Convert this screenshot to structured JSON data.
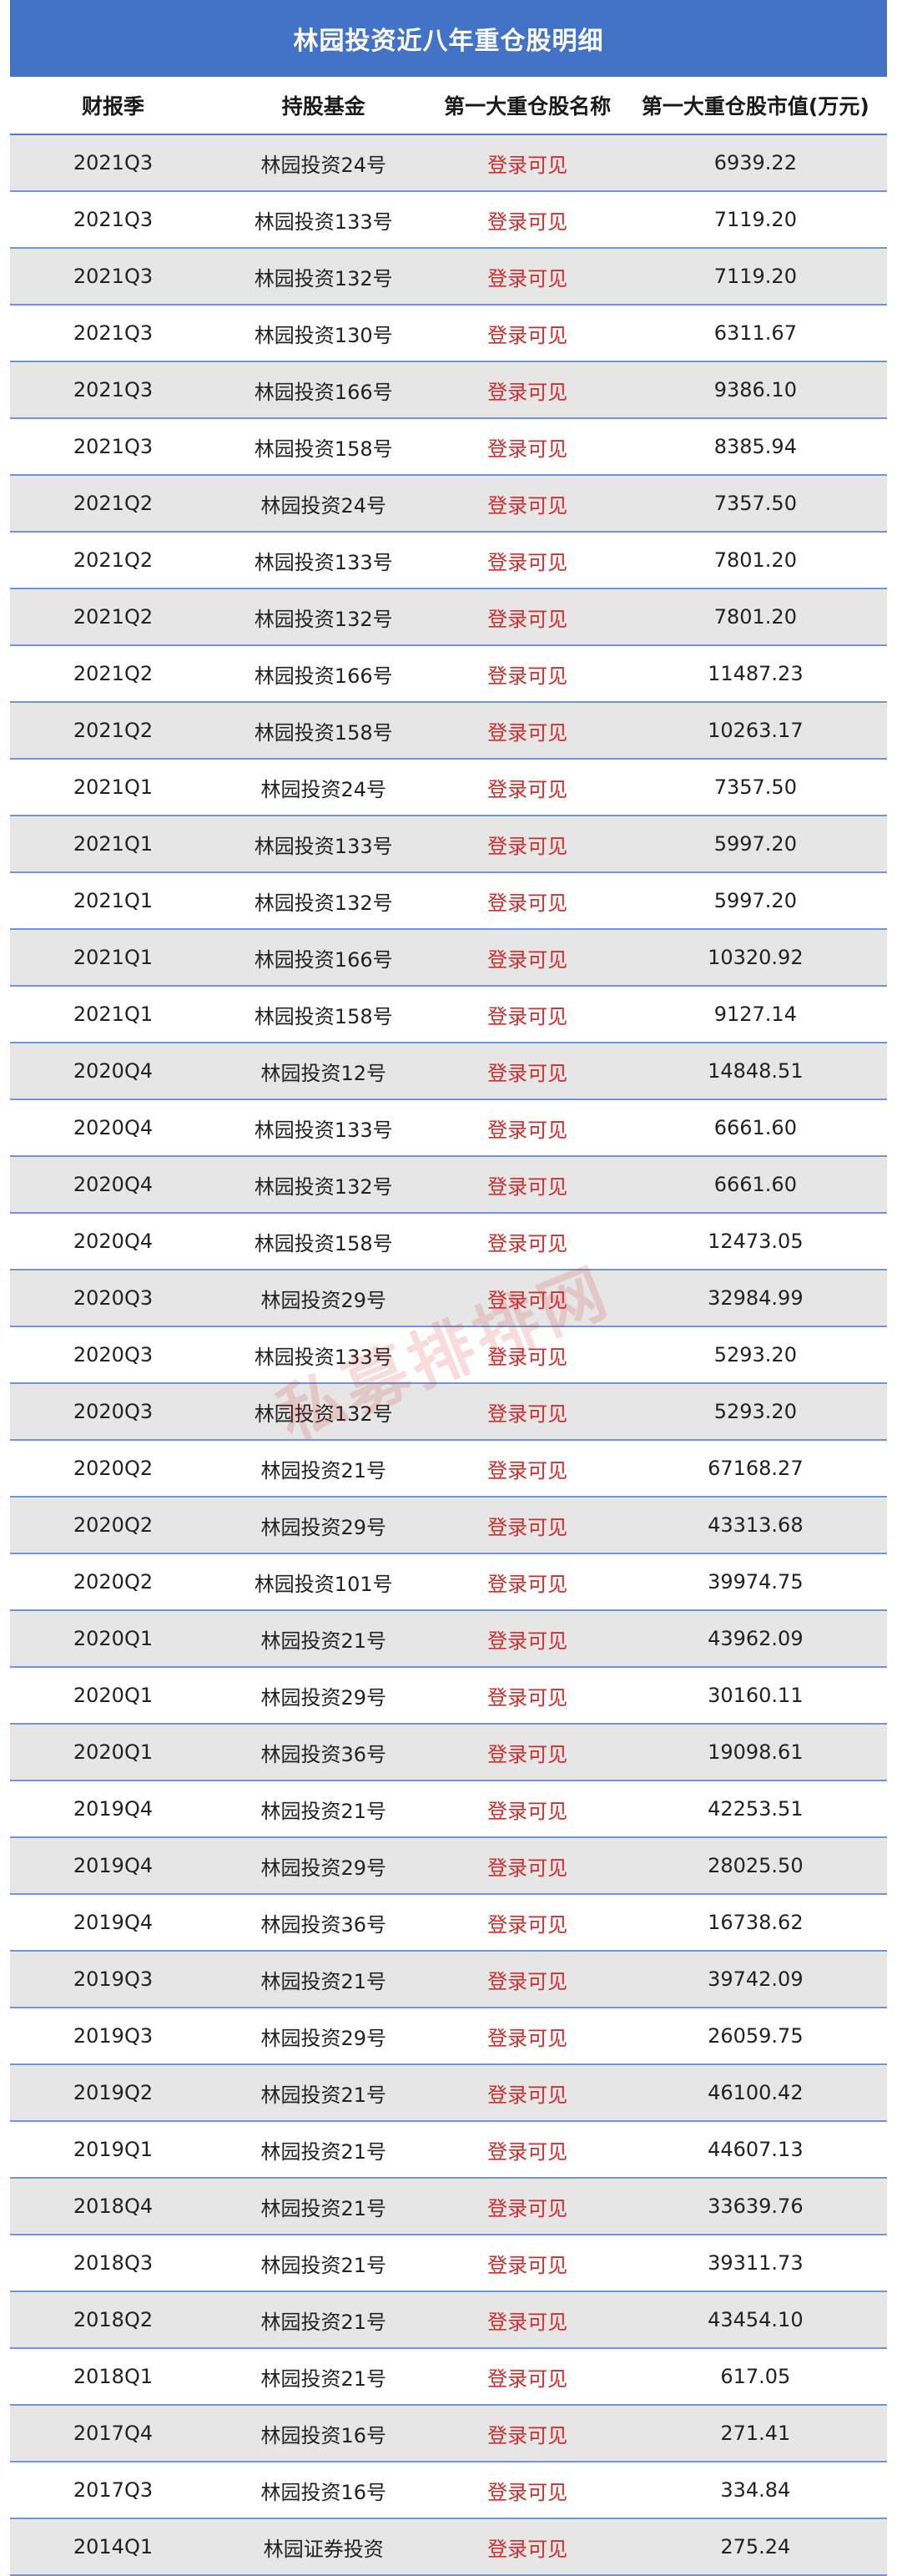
{
  "title": "林园投资近八年重仓股明细",
  "headers": [
    "财报季",
    "持股基金",
    "第一大重仓股名称",
    "第一大重仓股市值(万元)"
  ],
  "watermark": "私募排排网",
  "colors": {
    "header_bg": "#4273c6",
    "row_alt": "#e6e6e6",
    "login_red": "#d42b2b",
    "border_blue": "#6f94d8"
  },
  "rows": [
    {
      "season": "2021Q3",
      "fund": "林园投资24号",
      "stock": "登录可见",
      "value": "6939.22"
    },
    {
      "season": "2021Q3",
      "fund": "林园投资133号",
      "stock": "登录可见",
      "value": "7119.20"
    },
    {
      "season": "2021Q3",
      "fund": "林园投资132号",
      "stock": "登录可见",
      "value": "7119.20"
    },
    {
      "season": "2021Q3",
      "fund": "林园投资130号",
      "stock": "登录可见",
      "value": "6311.67"
    },
    {
      "season": "2021Q3",
      "fund": "林园投资166号",
      "stock": "登录可见",
      "value": "9386.10"
    },
    {
      "season": "2021Q3",
      "fund": "林园投资158号",
      "stock": "登录可见",
      "value": "8385.94"
    },
    {
      "season": "2021Q2",
      "fund": "林园投资24号",
      "stock": "登录可见",
      "value": "7357.50"
    },
    {
      "season": "2021Q2",
      "fund": "林园投资133号",
      "stock": "登录可见",
      "value": "7801.20"
    },
    {
      "season": "2021Q2",
      "fund": "林园投资132号",
      "stock": "登录可见",
      "value": "7801.20"
    },
    {
      "season": "2021Q2",
      "fund": "林园投资166号",
      "stock": "登录可见",
      "value": "11487.23"
    },
    {
      "season": "2021Q2",
      "fund": "林园投资158号",
      "stock": "登录可见",
      "value": "10263.17"
    },
    {
      "season": "2021Q1",
      "fund": "林园投资24号",
      "stock": "登录可见",
      "value": "7357.50"
    },
    {
      "season": "2021Q1",
      "fund": "林园投资133号",
      "stock": "登录可见",
      "value": "5997.20"
    },
    {
      "season": "2021Q1",
      "fund": "林园投资132号",
      "stock": "登录可见",
      "value": "5997.20"
    },
    {
      "season": "2021Q1",
      "fund": "林园投资166号",
      "stock": "登录可见",
      "value": "10320.92"
    },
    {
      "season": "2021Q1",
      "fund": "林园投资158号",
      "stock": "登录可见",
      "value": "9127.14"
    },
    {
      "season": "2020Q4",
      "fund": "林园投资12号",
      "stock": "登录可见",
      "value": "14848.51"
    },
    {
      "season": "2020Q4",
      "fund": "林园投资133号",
      "stock": "登录可见",
      "value": "6661.60"
    },
    {
      "season": "2020Q4",
      "fund": "林园投资132号",
      "stock": "登录可见",
      "value": "6661.60"
    },
    {
      "season": "2020Q4",
      "fund": "林园投资158号",
      "stock": "登录可见",
      "value": "12473.05"
    },
    {
      "season": "2020Q3",
      "fund": "林园投资29号",
      "stock": "登录可见",
      "value": "32984.99"
    },
    {
      "season": "2020Q3",
      "fund": "林园投资133号",
      "stock": "登录可见",
      "value": "5293.20"
    },
    {
      "season": "2020Q3",
      "fund": "林园投资132号",
      "stock": "登录可见",
      "value": "5293.20"
    },
    {
      "season": "2020Q2",
      "fund": "林园投资21号",
      "stock": "登录可见",
      "value": "67168.27"
    },
    {
      "season": "2020Q2",
      "fund": "林园投资29号",
      "stock": "登录可见",
      "value": "43313.68"
    },
    {
      "season": "2020Q2",
      "fund": "林园投资101号",
      "stock": "登录可见",
      "value": "39974.75"
    },
    {
      "season": "2020Q1",
      "fund": "林园投资21号",
      "stock": "登录可见",
      "value": "43962.09"
    },
    {
      "season": "2020Q1",
      "fund": "林园投资29号",
      "stock": "登录可见",
      "value": "30160.11"
    },
    {
      "season": "2020Q1",
      "fund": "林园投资36号",
      "stock": "登录可见",
      "value": "19098.61"
    },
    {
      "season": "2019Q4",
      "fund": "林园投资21号",
      "stock": "登录可见",
      "value": "42253.51"
    },
    {
      "season": "2019Q4",
      "fund": "林园投资29号",
      "stock": "登录可见",
      "value": "28025.50"
    },
    {
      "season": "2019Q4",
      "fund": "林园投资36号",
      "stock": "登录可见",
      "value": "16738.62"
    },
    {
      "season": "2019Q3",
      "fund": "林园投资21号",
      "stock": "登录可见",
      "value": "39742.09"
    },
    {
      "season": "2019Q3",
      "fund": "林园投资29号",
      "stock": "登录可见",
      "value": "26059.75"
    },
    {
      "season": "2019Q2",
      "fund": "林园投资21号",
      "stock": "登录可见",
      "value": "46100.42"
    },
    {
      "season": "2019Q1",
      "fund": "林园投资21号",
      "stock": "登录可见",
      "value": "44607.13"
    },
    {
      "season": "2018Q4",
      "fund": "林园投资21号",
      "stock": "登录可见",
      "value": "33639.76"
    },
    {
      "season": "2018Q3",
      "fund": "林园投资21号",
      "stock": "登录可见",
      "value": "39311.73"
    },
    {
      "season": "2018Q2",
      "fund": "林园投资21号",
      "stock": "登录可见",
      "value": "43454.10"
    },
    {
      "season": "2018Q1",
      "fund": "林园投资21号",
      "stock": "登录可见",
      "value": "617.05"
    },
    {
      "season": "2017Q4",
      "fund": "林园投资16号",
      "stock": "登录可见",
      "value": "271.41"
    },
    {
      "season": "2017Q3",
      "fund": "林园投资16号",
      "stock": "登录可见",
      "value": "334.84"
    },
    {
      "season": "2014Q1",
      "fund": "林园证券投资",
      "stock": "登录可见",
      "value": "275.24"
    }
  ]
}
